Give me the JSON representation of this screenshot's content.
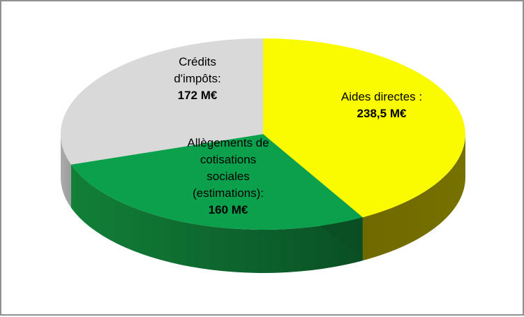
{
  "frame": {
    "background": "#FFFFFF",
    "border_color": "#909090"
  },
  "chart_data": {
    "type": "pie",
    "style": "3d",
    "title": "",
    "legend": "none",
    "start_angle_deg": 90,
    "clockwise": true,
    "unit": "M€",
    "slices": [
      {
        "name": "Aides directes",
        "label_lines": [
          "Aides directes :"
        ],
        "value": 238.5,
        "value_label": "238,5 M€",
        "color": "#FBFB00",
        "side_color_left": "#6F6900",
        "side_color_right": "#777100"
      },
      {
        "name": "Allègements de cotisations sociales (estimations)",
        "label_lines": [
          "Allègements de",
          "cotisations",
          "sociales",
          "(estimations):"
        ],
        "value": 160,
        "value_label": "160 M€",
        "color": "#0BA14C",
        "side_color_left": "#118038",
        "side_color_right": "#0A4F24"
      },
      {
        "name": "Crédits d'impôts",
        "label_lines": [
          "Crédits",
          "d'impôts:"
        ],
        "value": 172,
        "value_label": "172 M€",
        "color": "#D9D9D9",
        "side_color_left": "#ABABAB",
        "side_color_right": "#9C9C9C"
      }
    ]
  }
}
